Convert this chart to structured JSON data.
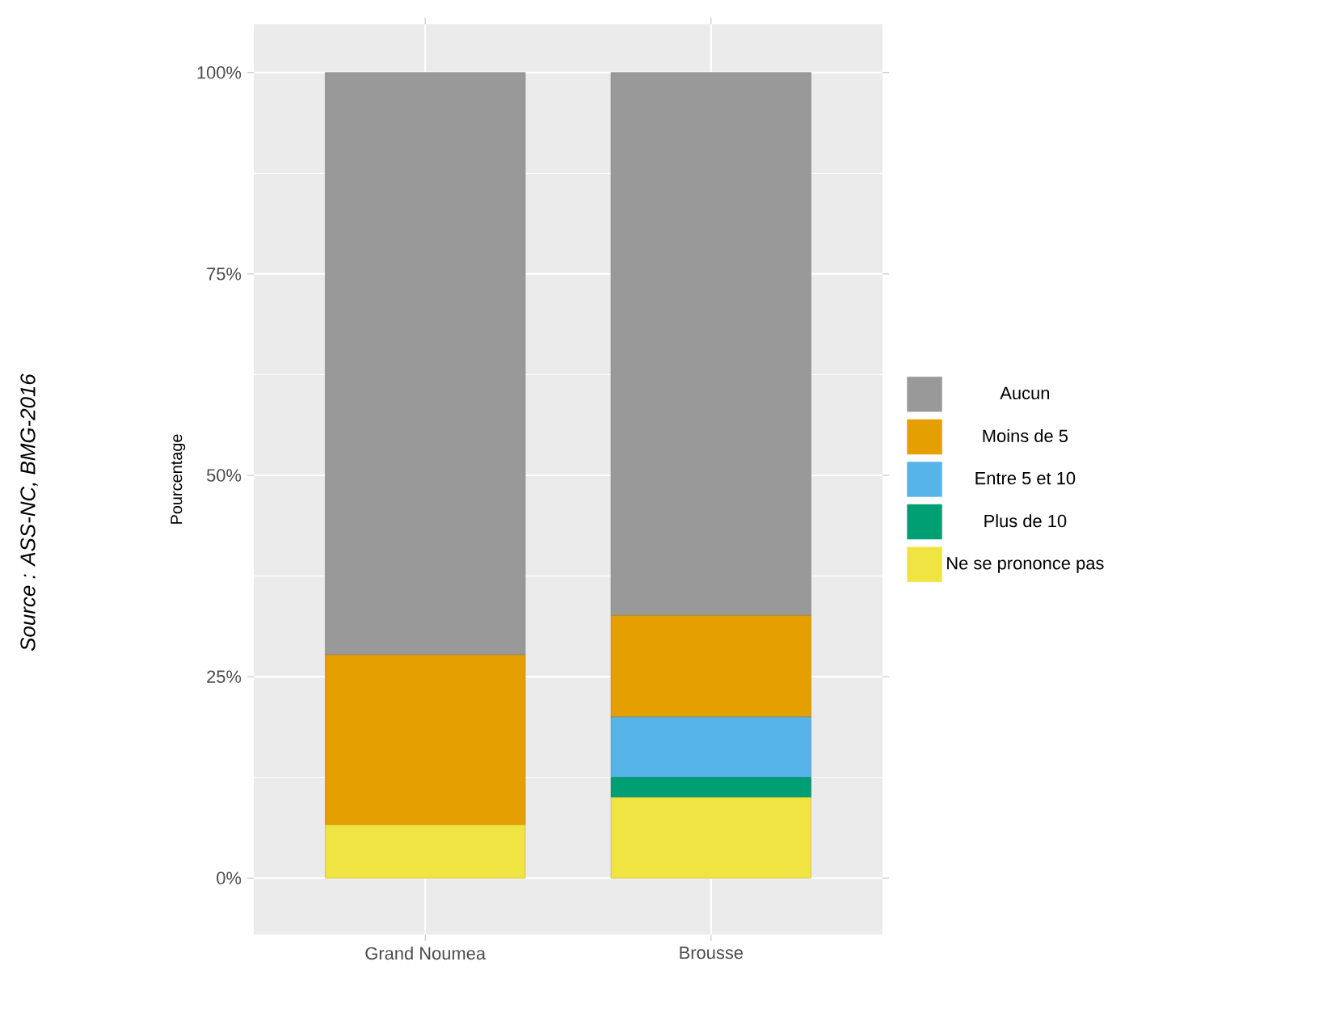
{
  "chart_data": {
    "type": "bar",
    "stacked": true,
    "ylabel": "Pourcentage",
    "categories": [
      "Grand Noumea",
      "Brousse"
    ],
    "series": [
      {
        "name": "Ne se prononce pas",
        "color": "#f0e442",
        "values": [
          6.6,
          10
        ]
      },
      {
        "name": "Plus de 10",
        "color": "#009e73",
        "values": [
          0,
          2.5
        ]
      },
      {
        "name": "Entre 5 et 10",
        "color": "#56b4e9",
        "values": [
          0,
          7.5
        ]
      },
      {
        "name": "Moins de 5",
        "color": "#e69f00",
        "values": [
          21.1,
          12.6
        ]
      },
      {
        "name": "Aucun",
        "color": "#999999",
        "values": [
          72.3,
          67.4
        ]
      }
    ],
    "ylim": [
      -7,
      106
    ],
    "yticks": [
      {
        "value": 0,
        "label": "0%"
      },
      {
        "value": 25,
        "label": "25%"
      },
      {
        "value": 50,
        "label": "50%"
      },
      {
        "value": 75,
        "label": "75%"
      },
      {
        "value": 100,
        "label": "100%"
      }
    ],
    "grid": true,
    "legend": "right",
    "annotations": [
      "Source : ASS-NC, BMG-2016"
    ]
  }
}
